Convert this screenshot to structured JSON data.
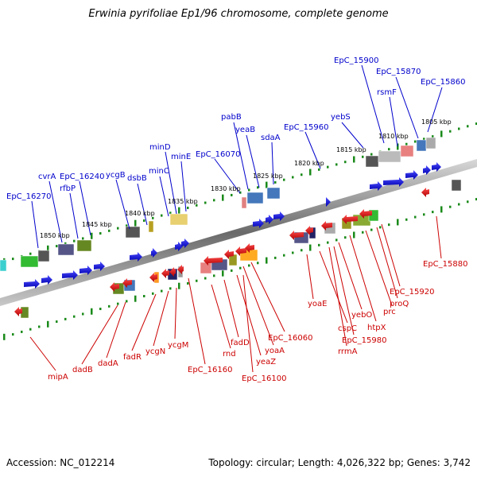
{
  "title": "Erwinia pyrifoliae Ep1/96 chromosome, complete genome",
  "footer": {
    "accession": "Accession: NC_012214",
    "summary": "Topology: circular; Length: 4,026,322 bp; Genes: 3,742"
  },
  "colors": {
    "forward_label": "#0000cc",
    "reverse_label": "#cc0000",
    "ticks": "#1a8a1a",
    "backbone": "#888888"
  },
  "ticks": [
    "1850 kbp",
    "1845 kbp",
    "1840 kbp",
    "1835 kbp",
    "1830 kbp",
    "1825 kbp",
    "1820 kbp",
    "1815 kbp",
    "1810 kbp",
    "1805 kbp"
  ],
  "forward_genes": [
    "EpC_16270",
    "cvrA",
    "rfbP",
    "EpC_16240",
    "ycgB",
    "dsbB",
    "minD",
    "minC",
    "minE",
    "EpC_16070",
    "pabB",
    "yeaB",
    "sdaA",
    "EpC_15960",
    "yebS",
    "EpC_15900",
    "rsmF",
    "EpC_15870",
    "EpC_15860"
  ],
  "reverse_genes": [
    "mipA",
    "dadB",
    "dadA",
    "fadR",
    "ycgN",
    "ycgM",
    "EpC_16160",
    "rnd",
    "fadD",
    "yeaZ",
    "EpC_16100",
    "yoaA",
    "EpC_16060",
    "yoaE",
    "cspC",
    "rrmA",
    "EpC_15980",
    "yebO",
    "htpX",
    "prc",
    "proQ",
    "EpC_15920",
    "EpC_15880"
  ]
}
